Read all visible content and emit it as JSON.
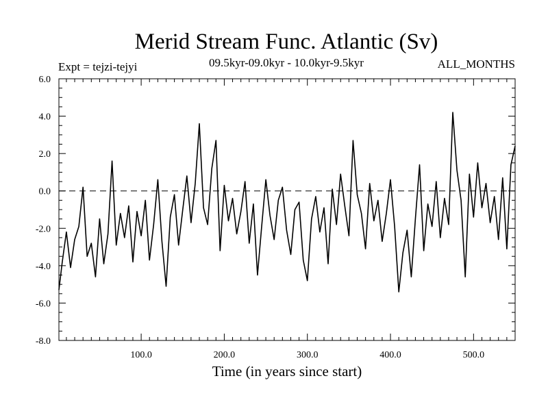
{
  "chart_data": {
    "type": "line",
    "title": "Merid Stream Func. Atlantic (Sv)",
    "subtitle": "09.5kyr-09.0kyr - 10.0kyr-9.5kyr",
    "expt_label": "Expt = tejzi-tejyi",
    "season_label": "ALL_MONTHS",
    "xlabel": "Time (in years since start)",
    "ylabel": "",
    "xlim": [
      1,
      550
    ],
    "ylim": [
      -8.0,
      6.0
    ],
    "x_ticks": [
      100,
      200,
      300,
      400,
      500
    ],
    "x_tick_labels": [
      "100.0",
      "200.0",
      "300.0",
      "400.0",
      "500.0"
    ],
    "y_ticks": [
      -8,
      -6,
      -4,
      -2,
      0,
      2,
      4,
      6
    ],
    "y_tick_labels": [
      "-8.0",
      "-6.0",
      "-4.0",
      "-2.0",
      "0.0",
      "2.0",
      "4.0",
      "6.0"
    ],
    "zero_line": "dashed",
    "series": [
      {
        "name": "Merid Stream Func. Atlantic",
        "x": [
          1,
          5,
          10,
          15,
          20,
          25,
          30,
          35,
          40,
          45,
          50,
          55,
          60,
          65,
          70,
          75,
          80,
          85,
          90,
          95,
          100,
          105,
          110,
          115,
          120,
          125,
          130,
          135,
          140,
          145,
          150,
          155,
          160,
          165,
          170,
          175,
          180,
          185,
          190,
          195,
          200,
          205,
          210,
          215,
          220,
          225,
          230,
          235,
          240,
          245,
          250,
          255,
          260,
          265,
          270,
          275,
          280,
          285,
          290,
          295,
          300,
          305,
          310,
          315,
          320,
          325,
          330,
          335,
          340,
          345,
          350,
          355,
          360,
          365,
          370,
          375,
          380,
          385,
          390,
          395,
          400,
          405,
          410,
          415,
          420,
          425,
          430,
          435,
          440,
          445,
          450,
          455,
          460,
          465,
          470,
          475,
          480,
          485,
          490,
          495,
          500,
          505,
          510,
          515,
          520,
          525,
          530,
          535,
          540,
          545,
          550
        ],
        "values": [
          -5.3,
          -3.8,
          -2.2,
          -4.1,
          -2.6,
          -1.9,
          0.2,
          -3.5,
          -2.8,
          -4.6,
          -1.5,
          -3.9,
          -2.3,
          1.6,
          -2.9,
          -1.2,
          -2.5,
          -0.8,
          -3.8,
          -1.1,
          -2.4,
          -0.5,
          -3.7,
          -1.8,
          0.6,
          -2.7,
          -5.1,
          -1.4,
          -0.2,
          -2.9,
          -1.0,
          0.8,
          -1.7,
          0.4,
          3.6,
          -0.9,
          -1.8,
          1.2,
          2.7,
          -3.2,
          0.3,
          -1.6,
          -0.4,
          -2.3,
          -1.1,
          0.5,
          -2.8,
          -0.7,
          -4.5,
          -1.9,
          0.6,
          -1.3,
          -2.6,
          -0.5,
          0.2,
          -2.1,
          -3.4,
          -1.0,
          -0.6,
          -3.7,
          -4.8,
          -1.5,
          -0.3,
          -2.2,
          -0.9,
          -3.9,
          0.1,
          -1.8,
          0.9,
          -0.8,
          -2.4,
          2.7,
          -0.2,
          -1.2,
          -3.1,
          0.4,
          -1.6,
          -0.5,
          -2.7,
          -1.2,
          0.6,
          -1.9,
          -5.4,
          -3.3,
          -2.1,
          -4.6,
          -1.5,
          1.4,
          -3.2,
          -0.7,
          -1.9,
          0.5,
          -2.5,
          -0.4,
          -1.8,
          4.2,
          1.1,
          -0.5,
          -4.6,
          0.9,
          -1.4,
          1.5,
          -0.9,
          0.4,
          -1.7,
          -0.3,
          -2.6,
          0.7,
          -3.1,
          1.4,
          2.4
        ]
      }
    ]
  }
}
